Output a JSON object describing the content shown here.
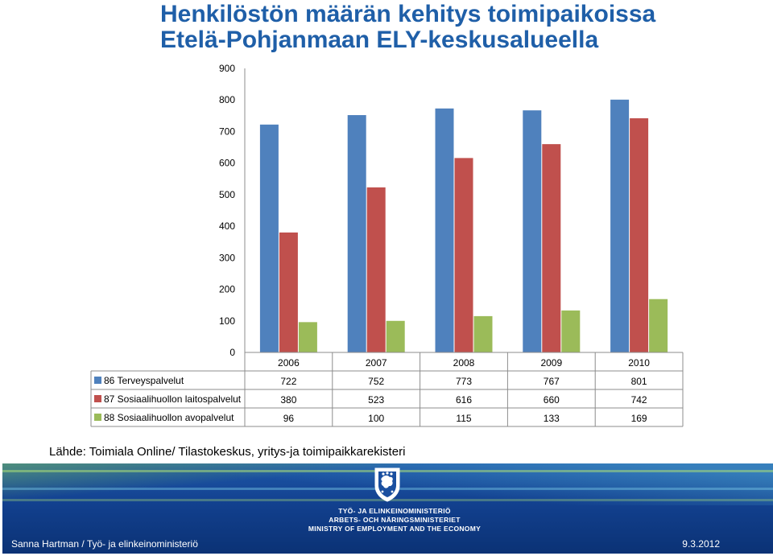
{
  "title": {
    "line1": "Henkilöstön määrän kehitys toimipaikoissa",
    "line2": "Etelä-Pohjanmaan ELY-keskusalueella"
  },
  "chart_data": {
    "type": "bar",
    "categories": [
      "2006",
      "2007",
      "2008",
      "2009",
      "2010"
    ],
    "series": [
      {
        "name": "86 Terveyspalvelut",
        "values": [
          722,
          752,
          773,
          767,
          801
        ],
        "color": "#4f81bd"
      },
      {
        "name": "87 Sosiaalihuollon laitospalvelut",
        "values": [
          380,
          523,
          616,
          660,
          742
        ],
        "color": "#c0504d"
      },
      {
        "name": "88 Sosiaalihuollon avopalvelut",
        "values": [
          96,
          100,
          115,
          133,
          169
        ],
        "color": "#9bbb59"
      }
    ],
    "ylim": [
      0,
      900
    ],
    "yticks": [
      0,
      100,
      200,
      300,
      400,
      500,
      600,
      700,
      800,
      900
    ],
    "grid": false,
    "legend": "data-table-left"
  },
  "source": "Lähde: Toimiala Online/ Tilastokeskus, yritys-ja toimipaikkarekisteri",
  "footer": {
    "ministry_line1": "TYÖ- JA ELINKEINOMINISTERIÖ",
    "ministry_line2": "ARBETS- OCH NÄRINGSMINISTERIET",
    "ministry_line3": "MINISTRY OF EMPLOYMENT AND THE ECONOMY",
    "author": "Sanna Hartman / Työ- ja elinkeinoministeriö",
    "date": "9.3.2012",
    "logo_icon": "finnish-lion-emblem-icon",
    "background_color": "#12408e"
  }
}
